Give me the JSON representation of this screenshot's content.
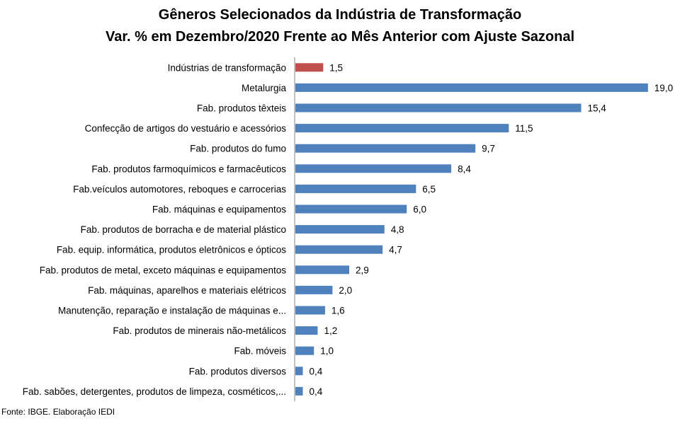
{
  "chart_data": {
    "type": "bar",
    "orientation": "horizontal",
    "title": "Gêneros Selecionados da Indústria de Transformação",
    "subtitle": "Var. % em Dezembro/2020 Frente ao Mês Anterior com Ajuste Sazonal",
    "categories": [
      "Indústrias de transformação",
      "Metalurgia",
      "Fab. produtos têxteis",
      "Confecção de artigos do vestuário e acessórios",
      "Fab. produtos do fumo",
      "Fab. produtos farmoquímicos e farmacêuticos",
      "Fab.veículos automotores, reboques e carrocerias",
      "Fab. máquinas e equipamentos",
      "Fab. produtos de borracha e de material plástico",
      "Fab. equip. informática, produtos eletrônicos e ópticos",
      "Fab. produtos de metal, exceto máquinas e equipamentos",
      "Fab. máquinas, aparelhos e materiais elétricos",
      "Manutenção, reparação e instalação de máquinas e...",
      "Fab. produtos de minerais não-metálicos",
      "Fab. móveis",
      "Fab. produtos diversos",
      "Fab. sabões, detergentes, produtos de limpeza, cosméticos,..."
    ],
    "values": [
      1.5,
      19.0,
      15.4,
      11.5,
      9.7,
      8.4,
      6.5,
      6.0,
      4.8,
      4.7,
      2.9,
      2.0,
      1.6,
      1.2,
      1.0,
      0.4,
      0.4
    ],
    "value_labels": [
      "1,5",
      "19,0",
      "15,4",
      "11,5",
      "9,7",
      "8,4",
      "6,5",
      "6,0",
      "4,8",
      "4,7",
      "2,9",
      "2,0",
      "1,6",
      "1,2",
      "1,0",
      "0,4",
      "0,4"
    ],
    "xlim": [
      0,
      20
    ],
    "highlight_color": "#C0504D",
    "bar_color": "#4F81BD",
    "grid": false,
    "legend": "none"
  },
  "source": "Fonte: IBGE. Elaboração IEDI"
}
